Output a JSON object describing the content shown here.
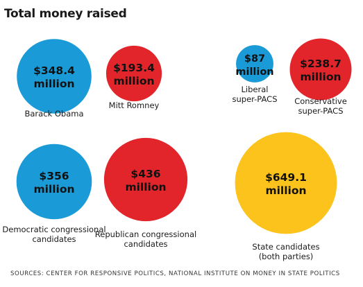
{
  "title": "Total money raised",
  "source": "SOURCES: CENTER FOR RESPONSIVE POLITICS, NATIONAL INSTITUTE ON MONEY IN STATE POLITICS",
  "colors": {
    "blue": "#1a9bd7",
    "red": "#e2252b",
    "gold": "#fbc31b"
  },
  "chart_data": {
    "type": "bubble",
    "title": "Total money raised",
    "unit": "million",
    "items": [
      {
        "name": "Barack Obama",
        "value_label": "$348.4",
        "unit_label": "million",
        "value": 348.4,
        "color": "blue",
        "label_lines": [
          "Barack Obama"
        ]
      },
      {
        "name": "Mitt Romney",
        "value_label": "$193.4",
        "unit_label": "million",
        "value": 193.4,
        "color": "red",
        "label_lines": [
          "Mitt Romney"
        ]
      },
      {
        "name": "Liberal super-PACs",
        "value_label": "$87",
        "unit_label": "million",
        "value": 87,
        "color": "blue",
        "label_lines": [
          "Liberal",
          "super-PACS"
        ]
      },
      {
        "name": "Conservative super-PACs",
        "value_label": "$238.7",
        "unit_label": "million",
        "value": 238.7,
        "color": "red",
        "label_lines": [
          "Conservative",
          "super-PACS"
        ]
      },
      {
        "name": "Democratic congressional candidates",
        "value_label": "$356",
        "unit_label": "million",
        "value": 356,
        "color": "blue",
        "label_lines": [
          "Democratic congressional",
          "candidates"
        ]
      },
      {
        "name": "Republican congressional candidates",
        "value_label": "$436",
        "unit_label": "million",
        "value": 436,
        "color": "red",
        "label_lines": [
          "Republican congressional",
          "candidates"
        ]
      },
      {
        "name": "State candidates (both parties)",
        "value_label": "$649.1",
        "unit_label": "million",
        "value": 649.1,
        "color": "gold",
        "label_lines": [
          "State candidates",
          "(both parties)"
        ]
      }
    ]
  }
}
